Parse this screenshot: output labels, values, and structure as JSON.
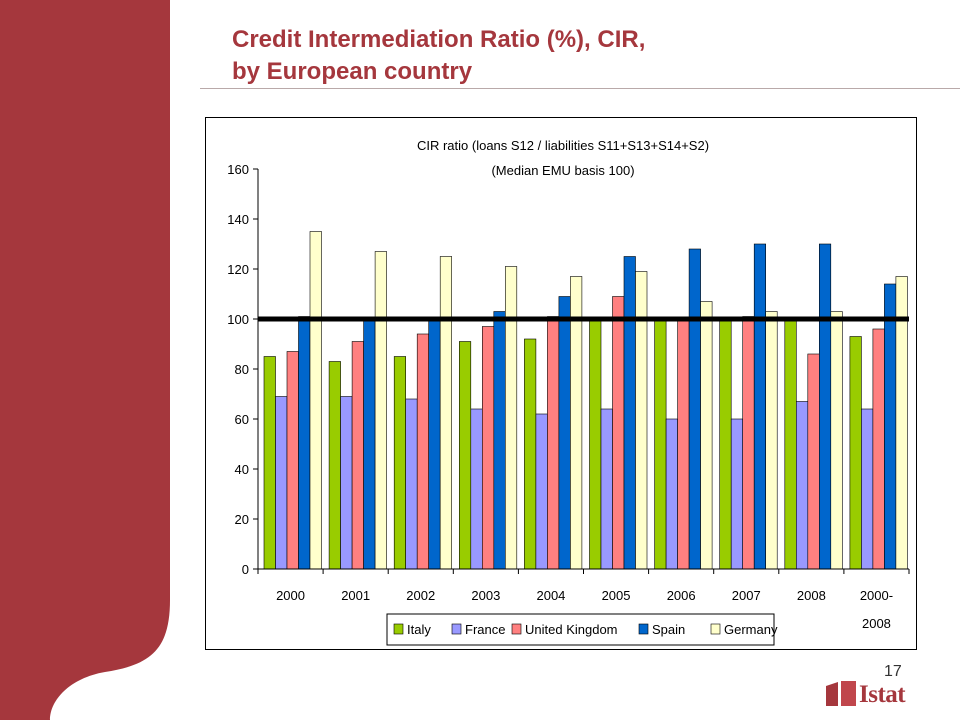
{
  "slide": {
    "title_line1": "Credit Intermediation Ratio (%), CIR,",
    "title_line2": "by European country",
    "page_number": "17",
    "logo_text": "Istat"
  },
  "colors": {
    "accent": "#a5373d",
    "Italy": "#99cc00",
    "France": "#9999ff",
    "United Kingdom": "#ff8080",
    "Spain": "#0066cc",
    "Germany": "#ffffcc",
    "reference": "#000000"
  },
  "chart_data": {
    "type": "bar",
    "title": "CIR ratio (loans S12 / liabilities S11+S13+S14+S2)",
    "subtitle": "(Median EMU basis 100)",
    "categories": [
      "2000",
      "2001",
      "2002",
      "2003",
      "2004",
      "2005",
      "2006",
      "2007",
      "2008",
      "2000-\n2008"
    ],
    "series": [
      {
        "name": "Italy",
        "values": [
          85,
          83,
          85,
          91,
          92,
          100,
          100,
          100,
          100,
          93
        ]
      },
      {
        "name": "France",
        "values": [
          69,
          69,
          68,
          64,
          62,
          64,
          60,
          60,
          67,
          64
        ]
      },
      {
        "name": "United Kingdom",
        "values": [
          87,
          91,
          94,
          97,
          101,
          109,
          100,
          101,
          86,
          96
        ]
      },
      {
        "name": "Spain",
        "values": [
          101,
          100,
          100,
          103,
          109,
          125,
          128,
          130,
          130,
          114
        ]
      },
      {
        "name": "Germany",
        "values": [
          135,
          127,
          125,
          121,
          117,
          119,
          107,
          103,
          103,
          117
        ]
      }
    ],
    "reference_line": 100,
    "ylim": [
      0,
      160
    ],
    "yticks": [
      0,
      20,
      40,
      60,
      80,
      100,
      120,
      140,
      160
    ],
    "grid": false,
    "legend_position": "bottom"
  }
}
